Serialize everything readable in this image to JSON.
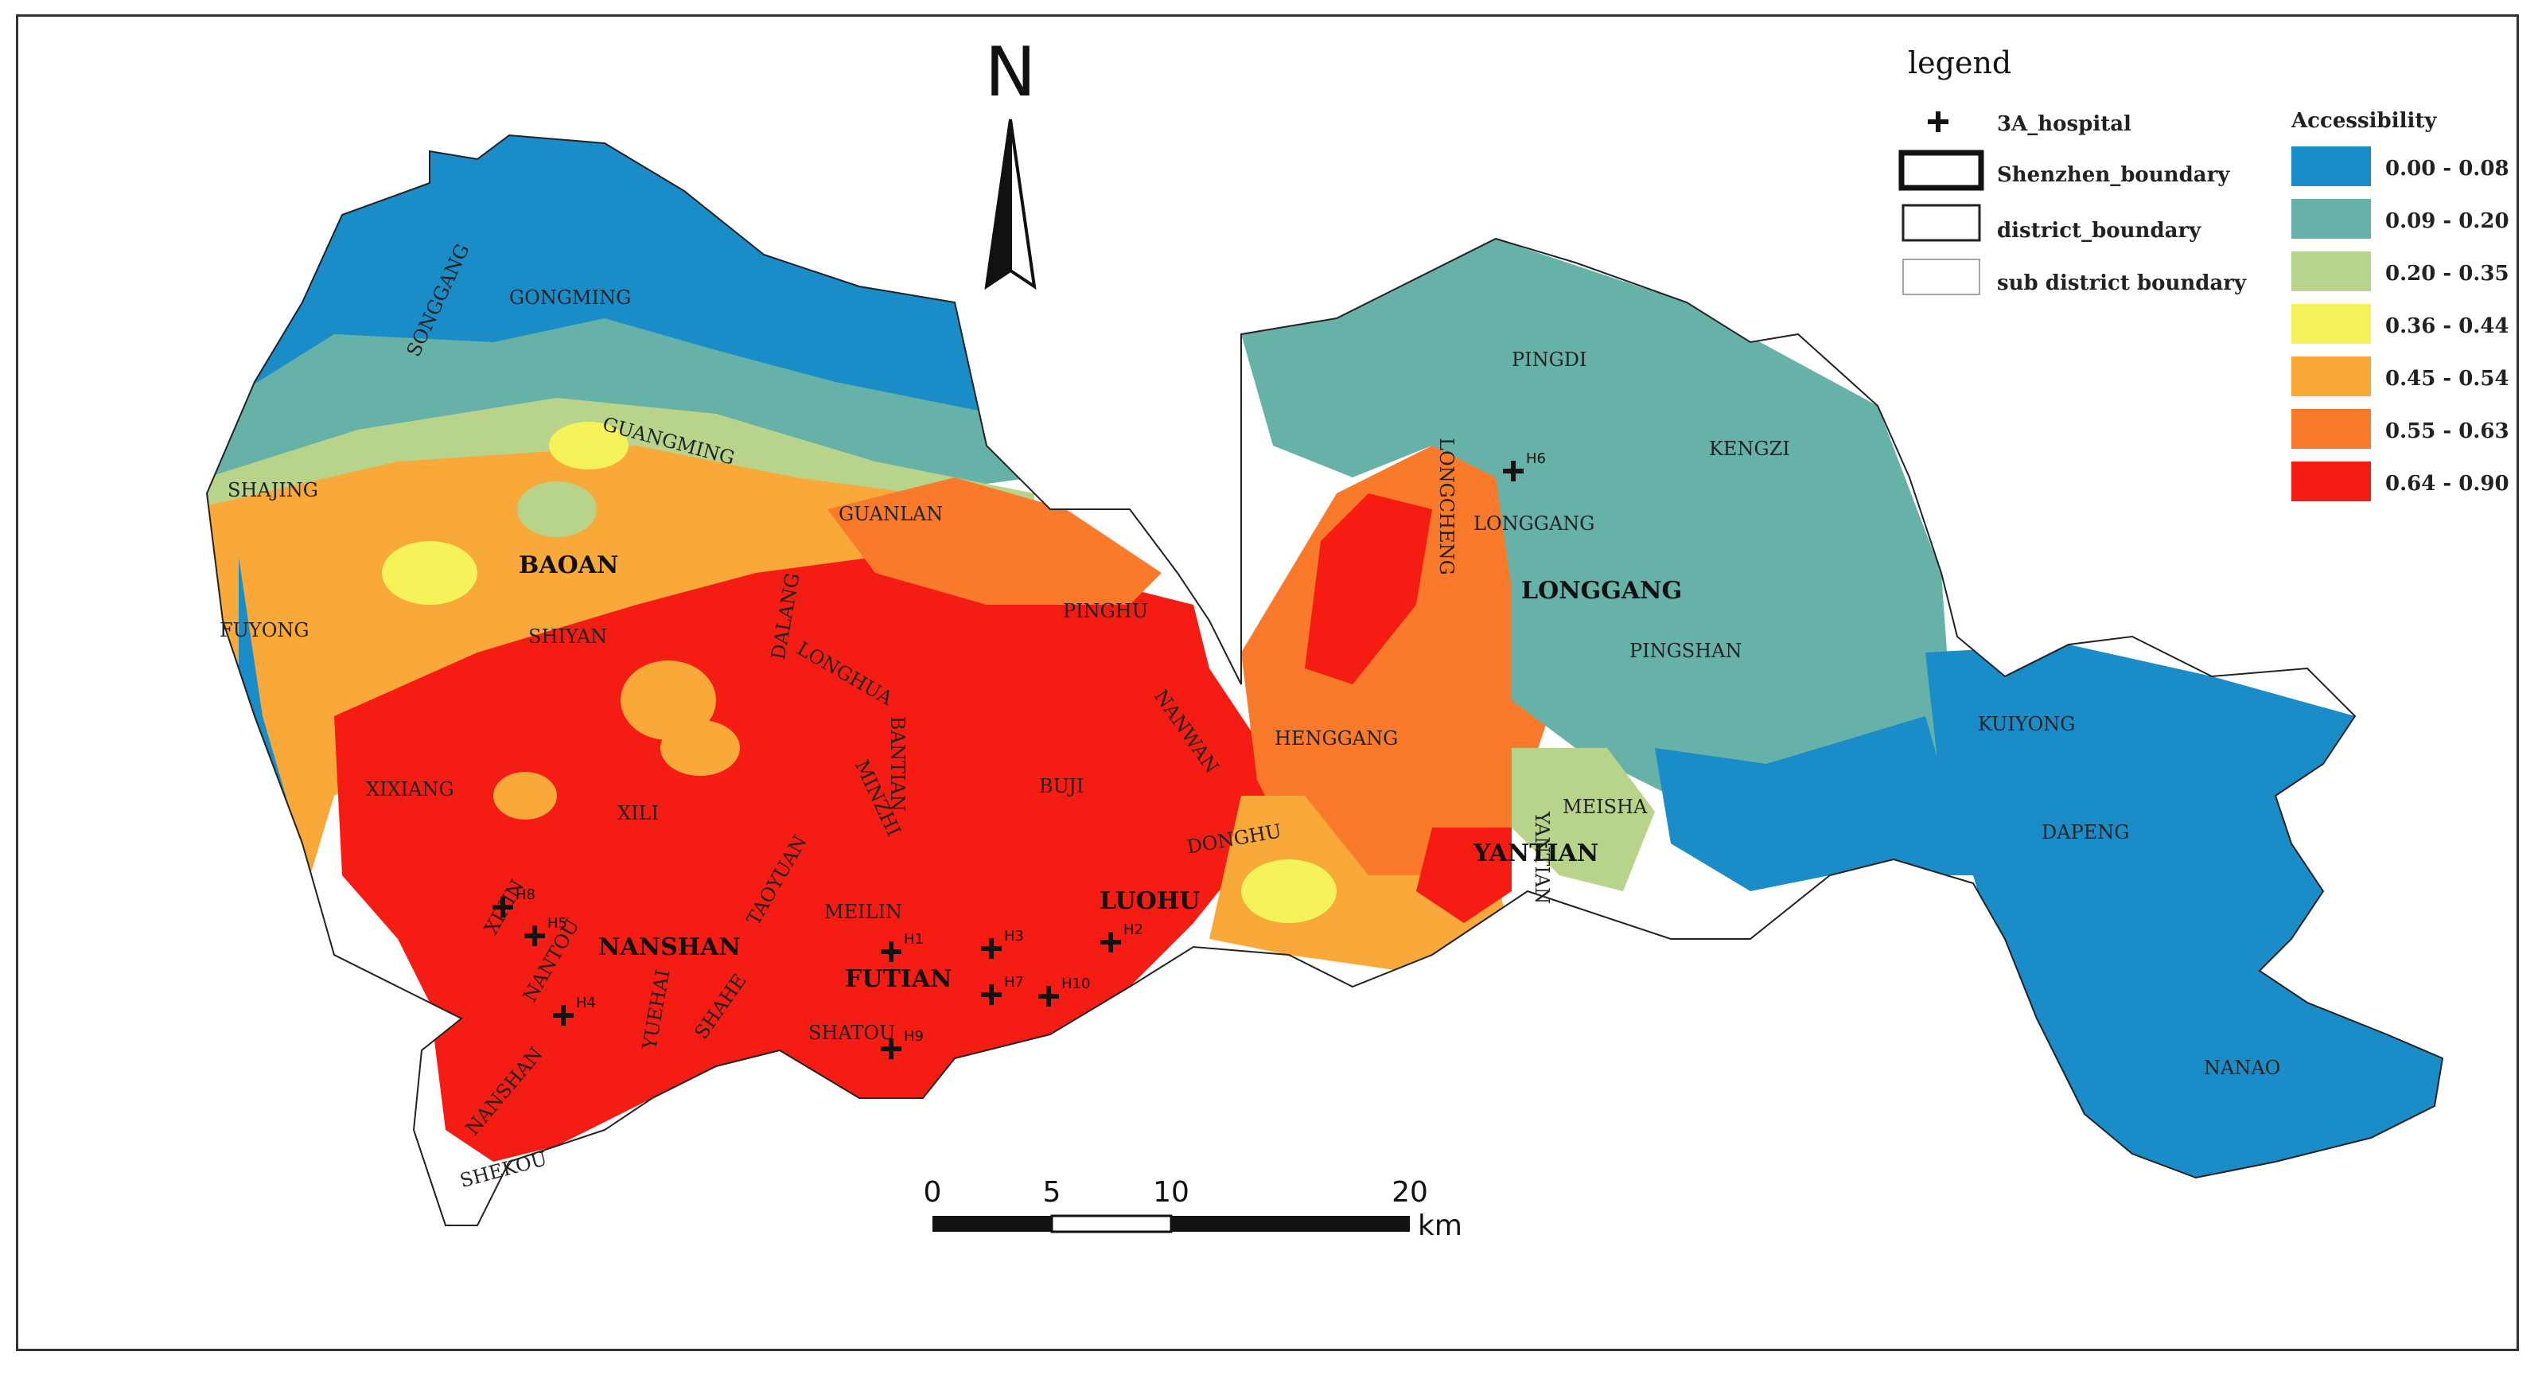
{
  "north_label": "N",
  "legend": {
    "title": "legend",
    "items": [
      {
        "symbol": "cross",
        "label": "3A_hospital"
      },
      {
        "symbol": "thick-box",
        "label": "Shenzhen_boundary"
      },
      {
        "symbol": "medium-box",
        "label": "district_boundary"
      },
      {
        "symbol": "thin-box",
        "label": "sub district boundary"
      }
    ],
    "accessibility_title": "Accessibility",
    "classes": [
      {
        "range": "0.00 - 0.08",
        "color": "#1a8cc8"
      },
      {
        "range": "0.09 - 0.20",
        "color": "#66b2a9"
      },
      {
        "range": "0.20 - 0.35",
        "color": "#b8d48b"
      },
      {
        "range": "0.36 - 0.44",
        "color": "#f6f35a"
      },
      {
        "range": "0.45 - 0.54",
        "color": "#f9a93a"
      },
      {
        "range": "0.55 - 0.63",
        "color": "#f87a2a"
      },
      {
        "range": "0.64 - 0.90",
        "color": "#f41c13"
      }
    ]
  },
  "scale_bar": {
    "ticks": [
      "0",
      "5",
      "10",
      "20"
    ],
    "unit": "km"
  },
  "districts": [
    {
      "name": "BAOAN"
    },
    {
      "name": "NANSHAN"
    },
    {
      "name": "FUTIAN"
    },
    {
      "name": "LUOHU"
    },
    {
      "name": "LONGGANG"
    },
    {
      "name": "YANTIAN"
    }
  ],
  "subdistricts": [
    {
      "name": "SONGGANG"
    },
    {
      "name": "GONGMING"
    },
    {
      "name": "GUANGMING"
    },
    {
      "name": "SHAJING"
    },
    {
      "name": "FUYONG"
    },
    {
      "name": "SHIYAN"
    },
    {
      "name": "GUANLAN"
    },
    {
      "name": "DALANG"
    },
    {
      "name": "LONGHUA"
    },
    {
      "name": "PINGHU"
    },
    {
      "name": "BANTIAN"
    },
    {
      "name": "NANWAN"
    },
    {
      "name": "MINZHI"
    },
    {
      "name": "BUJI"
    },
    {
      "name": "XIXIANG"
    },
    {
      "name": "XILI"
    },
    {
      "name": "TAOYUAN"
    },
    {
      "name": "XIXIN"
    },
    {
      "name": "NANTOU"
    },
    {
      "name": "MEILIN"
    },
    {
      "name": "YUEHAI"
    },
    {
      "name": "SHAHE"
    },
    {
      "name": "SHATOU"
    },
    {
      "name": "NANSHAN"
    },
    {
      "name": "SHEKOU"
    },
    {
      "name": "DONGHU"
    },
    {
      "name": "HENGGANG"
    },
    {
      "name": "LONGCHENG"
    },
    {
      "name": "PINGDI"
    },
    {
      "name": "KENGZI"
    },
    {
      "name": "LONGGANG"
    },
    {
      "name": "PINGSHAN"
    },
    {
      "name": "KUIYONG"
    },
    {
      "name": "DAPENG"
    },
    {
      "name": "NANAO"
    },
    {
      "name": "MEISHA"
    },
    {
      "name": "YANTIAN"
    }
  ],
  "hospitals": [
    {
      "id": "H1"
    },
    {
      "id": "H2"
    },
    {
      "id": "H3"
    },
    {
      "id": "H4"
    },
    {
      "id": "H5"
    },
    {
      "id": "H6"
    },
    {
      "id": "H7"
    },
    {
      "id": "H8"
    },
    {
      "id": "H9"
    },
    {
      "id": "H10"
    }
  ]
}
